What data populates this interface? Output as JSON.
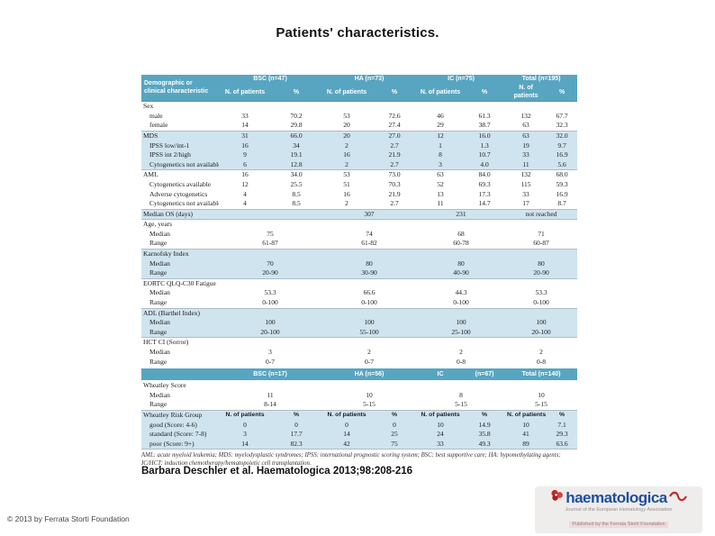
{
  "page": {
    "title": "Patients' characteristics.",
    "citation": "Barbara Deschler et al. Haematologica 2013;98:208-216",
    "copyright": "© 2013 by Ferrata Storti Foundation"
  },
  "logo": {
    "name": "haematologica",
    "tagline_line1": "Journal of the European Hematology Association",
    "tagline_line2": "Published by the Ferrata Storti Foundation",
    "brand_color": "#1e4f9c",
    "accent_color": "#c32a2a"
  },
  "table": {
    "colors": {
      "header_bg": "#58a5c1",
      "band_bg": "#cfe4ef",
      "header_text": "#ffffff"
    },
    "header1": {
      "label_line1": "Demographic or",
      "label_line2": "clinical characteristic",
      "groups": [
        "BSC (n=47)",
        "HA (n=73)",
        "IC (n=75)",
        "Total (n=195)"
      ],
      "sub_n": "N. of patients",
      "sub_pct": "%"
    },
    "header2": {
      "bsc": "BSC (n=17)",
      "ha": "HA (n=56)",
      "ic": "IC",
      "ic_n": "(n=67)",
      "total": "Total (n=140)"
    },
    "rows": [
      {
        "label": "Sex",
        "sec": true
      },
      {
        "label": "male",
        "ind": 1,
        "cells": [
          "33",
          "70.2",
          "53",
          "72.6",
          "46",
          "61.3",
          "132",
          "67.7"
        ]
      },
      {
        "label": "female",
        "ind": 1,
        "cells": [
          "14",
          "29.8",
          "20",
          "27.4",
          "29",
          "38.7",
          "63",
          "32.3"
        ]
      },
      {
        "label": "MDS",
        "band": true,
        "sec": true,
        "cells": [
          "31",
          "66.0",
          "20",
          "27.0",
          "12",
          "16.0",
          "63",
          "32.0"
        ]
      },
      {
        "label": "IPSS low/int-1",
        "ind": 1,
        "band": true,
        "cells": [
          "16",
          "34",
          "2",
          "2.7",
          "1",
          "1.3",
          "19",
          "9.7"
        ]
      },
      {
        "label": "IPSS int 2/high",
        "ind": 1,
        "band": true,
        "cells": [
          "9",
          "19.1",
          "16",
          "21.9",
          "8",
          "10.7",
          "33",
          "16.9"
        ]
      },
      {
        "label": "Cytogenetics not available",
        "ind": 1,
        "band": true,
        "cells": [
          "6",
          "12.8",
          "2",
          "2.7",
          "3",
          "4.0",
          "11",
          "5.6"
        ]
      },
      {
        "label": "AML",
        "sec": true,
        "cells": [
          "16",
          "34.0",
          "53",
          "73.0",
          "63",
          "84.0",
          "132",
          "68.0"
        ]
      },
      {
        "label": "Cytogenetics available",
        "ind": 1,
        "cells": [
          "12",
          "25.5",
          "51",
          "70.3",
          "52",
          "69.3",
          "115",
          "59.3"
        ]
      },
      {
        "label": "Adverse cytogenetics",
        "ind": 1,
        "cells": [
          "4",
          "8.5",
          "16",
          "21.9",
          "13",
          "17.3",
          "33",
          "16.9"
        ]
      },
      {
        "label": "Cytogenetics not available",
        "ind": 1,
        "cells": [
          "4",
          "8.5",
          "2",
          "2.7",
          "11",
          "14.7",
          "17",
          "8.7"
        ]
      },
      {
        "label": "Median OS (days)",
        "band": true,
        "sec": true,
        "groups": [
          "",
          "307",
          "231",
          "not reached"
        ]
      },
      {
        "label": "Age, years",
        "sec": true
      },
      {
        "label": "Median",
        "ind": 1,
        "groups": [
          "75",
          "74",
          "68",
          "71"
        ]
      },
      {
        "label": "Range",
        "ind": 1,
        "groups": [
          "61-87",
          "61-82",
          "60-78",
          "60-87"
        ]
      },
      {
        "label": "Karnofsky Index",
        "band": true,
        "sec": true
      },
      {
        "label": "Median",
        "ind": 1,
        "band": true,
        "groups": [
          "70",
          "80",
          "80",
          "80"
        ]
      },
      {
        "label": "Range",
        "ind": 1,
        "band": true,
        "groups": [
          "20-90",
          "30-90",
          "40-90",
          "20-90"
        ]
      },
      {
        "label": "EORTC QLQ-C30 Fatigue",
        "sec": true
      },
      {
        "label": "Median",
        "ind": 1,
        "groups": [
          "53.3",
          "66.6",
          "44.3",
          "53.3"
        ]
      },
      {
        "label": "Range",
        "ind": 1,
        "groups": [
          "0-100",
          "0-100",
          "0-100",
          "0-100"
        ]
      },
      {
        "label": "ADL (Barthel Index)",
        "band": true,
        "sec": true
      },
      {
        "label": "Median",
        "ind": 1,
        "band": true,
        "groups": [
          "100",
          "100",
          "100",
          "100"
        ]
      },
      {
        "label": "Range",
        "ind": 1,
        "band": true,
        "groups": [
          "20-100",
          "55-100",
          "25-100",
          "20-100"
        ]
      },
      {
        "label": "HCT CI (Sorror)",
        "sec": true
      },
      {
        "label": "Median",
        "ind": 1,
        "groups": [
          "3",
          "2",
          "2",
          "2"
        ]
      },
      {
        "label": "Range",
        "ind": 1,
        "groups": [
          "0-7",
          "0-7",
          "0-8",
          "0-8"
        ]
      },
      {
        "t": "h2"
      },
      {
        "label": "Wheatley Score",
        "sec": true
      },
      {
        "label": "Median",
        "ind": 1,
        "groups": [
          "11",
          "10",
          "8",
          "10"
        ]
      },
      {
        "label": "Range",
        "ind": 1,
        "groups": [
          "8-14",
          "5-15",
          "5-15",
          "5-15"
        ]
      },
      {
        "label": "Wheatley Risk Group",
        "band": true,
        "sec": true,
        "sub": true,
        "cells": [
          "N. of patients",
          "%",
          "N. of patients",
          "%",
          "N. of patients",
          "%",
          "N. of patients",
          "%"
        ]
      },
      {
        "label": "good (Score: 4-6)",
        "ind": 1,
        "band": true,
        "cells": [
          "0",
          "0",
          "0",
          "0",
          "10",
          "14.9",
          "10",
          "7.1"
        ]
      },
      {
        "label": "standard (Score: 7-8)",
        "ind": 1,
        "band": true,
        "cells": [
          "3",
          "17.7",
          "14",
          "25",
          "24",
          "35.8",
          "41",
          "29.3"
        ]
      },
      {
        "label": "poor (Score: 9+)",
        "ind": 1,
        "band": true,
        "cells": [
          "14",
          "82.3",
          "42",
          "75",
          "33",
          "49.3",
          "89",
          "63.6"
        ]
      }
    ],
    "footnote": "AML: acute myeloid leukemia; MDS: myelodysplastic syndromes; IPSS: international prognostic scoring system; BSC: best supportive care; HA: hypomethylating agents; IC/HCT: induction chemotherapy/hematopoietic cell transplantation."
  }
}
